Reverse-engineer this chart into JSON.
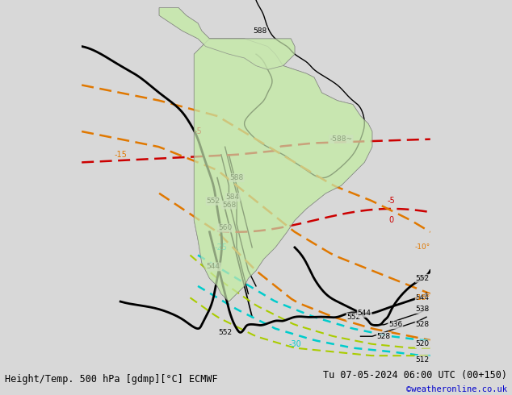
{
  "title_left": "Height/Temp. 500 hPa [gdmp][°C] ECMWF",
  "title_right": "Tu 07-05-2024 06:00 UTC (00+150)",
  "copyright": "©weatheronline.co.uk",
  "fig_width": 6.34,
  "fig_height": 4.9,
  "dpi": 100,
  "bg_color": "#d8d8d8",
  "land_color": "#c8e6b0",
  "coast_color": "#808080",
  "black_contour_color": "#000000",
  "thick_contour_color": "#000000",
  "red_dashed_color": "#cc0000",
  "orange_dashed_color": "#e07800",
  "cyan_dashed_color": "#00cccc",
  "yellow_green_dashed_color": "#aacc00",
  "title_fontsize": 8.5,
  "label_fontsize": 7,
  "bottom_text_color": "#000000",
  "copyright_color": "#0000cc"
}
